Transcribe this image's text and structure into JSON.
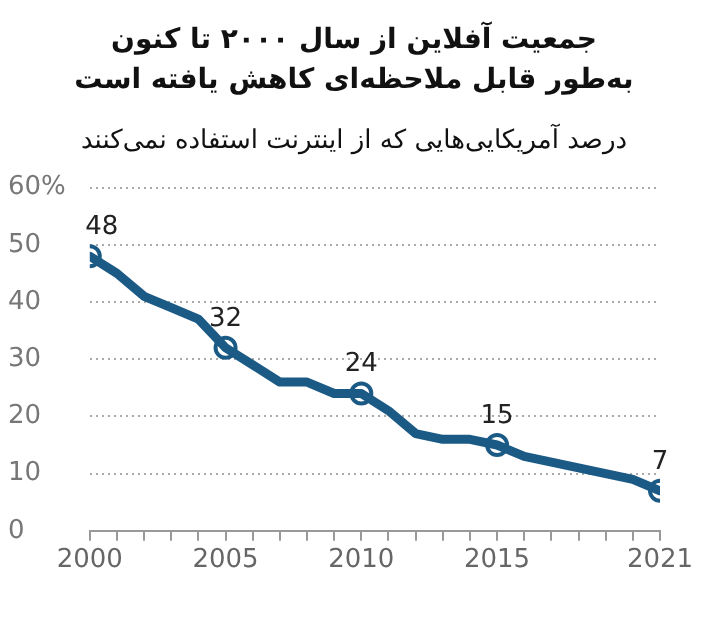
{
  "chart_data": {
    "type": "line",
    "title": "جمعیت آفلاین از سال ۲۰۰۰ تا کنون\nبه‌طور قابل ملاحظه‌ای کاهش یافته است",
    "subtitle": "درصد آمریکایی‌هایی که از اینترنت استفاده نمی‌کنند",
    "x": [
      2000,
      2001,
      2002,
      2003,
      2004,
      2005,
      2006,
      2007,
      2008,
      2009,
      2010,
      2011,
      2012,
      2013,
      2014,
      2015,
      2016,
      2017,
      2018,
      2019,
      2020,
      2021
    ],
    "series": [
      {
        "color": "#1b5a85",
        "marker": "none",
        "values": [
          48,
          45,
          41,
          39,
          37,
          32,
          29,
          26,
          26,
          24,
          24,
          21,
          17,
          16,
          16,
          15,
          13,
          12,
          11,
          10,
          9,
          7
        ]
      },
      {
        "type": "scatter",
        "color": "#1b5a85",
        "marker": "circle",
        "x": [
          2000,
          2005,
          2010,
          2015,
          2021
        ],
        "values": [
          48,
          32,
          24,
          15,
          7
        ],
        "value_labels": [
          "48",
          "32",
          "24",
          "15",
          "7"
        ]
      }
    ],
    "xlim": [
      2000,
      2021
    ],
    "xticks": [
      2000,
      {
        "value": 2001,
        "label": null
      },
      {
        "value": 2002,
        "label": null
      },
      {
        "value": 2003,
        "label": null
      },
      {
        "value": 2004,
        "label": null
      },
      2005,
      {
        "value": 2006,
        "label": null
      },
      {
        "value": 2007,
        "label": null
      },
      {
        "value": 2008,
        "label": null
      },
      {
        "value": 2009,
        "label": null
      },
      2010,
      {
        "value": 2011,
        "label": null
      },
      {
        "value": 2012,
        "label": null
      },
      {
        "value": 2013,
        "label": null
      },
      {
        "value": 2014,
        "label": null
      },
      2015,
      {
        "value": 2016,
        "label": null
      },
      {
        "value": 2017,
        "label": null
      },
      {
        "value": 2018,
        "label": null
      },
      {
        "value": 2019,
        "label": null
      },
      {
        "value": 2020,
        "label": null
      },
      2021
    ],
    "ylim": [
      0,
      60
    ],
    "yticks": [
      0,
      10,
      20,
      30,
      40,
      50,
      {
        "value": 60,
        "label": "60%"
      }
    ],
    "grid": "y",
    "legend": false,
    "line_style": "solid"
  }
}
